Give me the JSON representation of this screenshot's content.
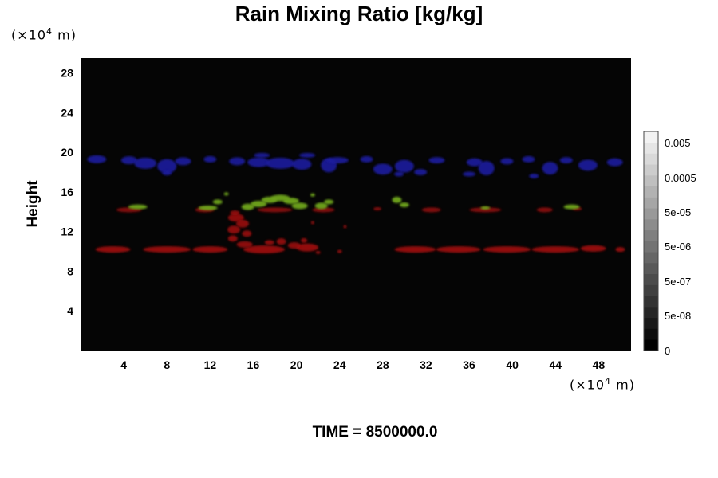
{
  "chart_data": {
    "type": "heatmap",
    "title": "Rain Mixing Ratio [kg/kg]",
    "ylabel": "Height",
    "y_unit": {
      "prefix": "(×10",
      "exp": "4",
      "suffix": " m)"
    },
    "x_unit": {
      "prefix": "(×10",
      "exp": "4",
      "suffix": " m)"
    },
    "xlim": [
      0,
      51
    ],
    "ylim": [
      0,
      29.5
    ],
    "xticks": [
      "4",
      "8",
      "12",
      "16",
      "20",
      "24",
      "28",
      "32",
      "36",
      "40",
      "44",
      "48"
    ],
    "yticks": [
      "4",
      "8",
      "12",
      "16",
      "20",
      "24",
      "28"
    ],
    "xtick_values": [
      4,
      8,
      12,
      16,
      20,
      24,
      28,
      32,
      36,
      40,
      44,
      48
    ],
    "ytick_values": [
      4,
      8,
      12,
      16,
      20,
      24,
      28
    ],
    "background_color": "#050505",
    "colorbar": {
      "labels": [
        "0.005",
        "0.0005",
        "5e-05",
        "5e-06",
        "5e-07",
        "5e-08",
        "0"
      ],
      "levels": 20,
      "low_color": "#000000",
      "high_color": "#f2f2f2"
    },
    "features": [
      {
        "name": "upper layer",
        "color": "#1a1a9e",
        "y_range": [
          17.5,
          20
        ]
      },
      {
        "name": "middle layer",
        "color": "#6fa61e",
        "y_range": [
          14,
          16
        ]
      },
      {
        "name": "middle red layer",
        "color": "#8a0f0f",
        "y_range": [
          13.8,
          14.6
        ]
      },
      {
        "name": "lower layer",
        "color": "#9a0f0f",
        "y_range": [
          9.9,
          10.6
        ]
      }
    ],
    "time_label": "TIME = 8500000.0"
  }
}
